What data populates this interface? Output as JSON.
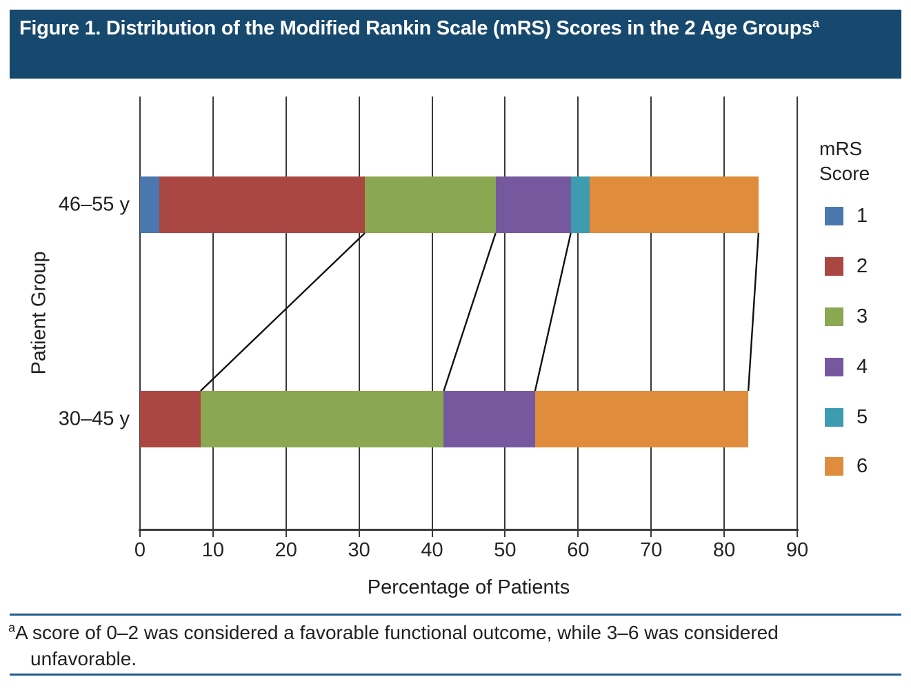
{
  "header": {
    "title": "Figure 1. Distribution of the Modified Rankin Scale (mRS) Scores in the 2 Age Groups",
    "title_superscript": "a"
  },
  "colors": {
    "header_bg": "#17486e",
    "header_text": "#ffffff",
    "footnote_rule": "#1f5c8d",
    "axis": "#3a3a3a",
    "grid": "#383838",
    "connector": "#111111"
  },
  "chart_data": {
    "type": "bar",
    "variant": "horizontal-stacked",
    "title": "Distribution of the Modified Rankin Scale (mRS) Scores in the 2 Age Groups",
    "categories": [
      "46–55 y",
      "30–45 y"
    ],
    "series": [
      {
        "name": "1",
        "color": "#4a77ad",
        "values": [
          2.6,
          0
        ]
      },
      {
        "name": "2",
        "color": "#ab4742",
        "values": [
          28.2,
          8.3
        ]
      },
      {
        "name": "3",
        "color": "#8aa751",
        "values": [
          17.9,
          33.3
        ]
      },
      {
        "name": "4",
        "color": "#76589e",
        "values": [
          10.3,
          12.5
        ]
      },
      {
        "name": "5",
        "color": "#3d9cb0",
        "values": [
          2.6,
          0
        ]
      },
      {
        "name": "6",
        "color": "#e08c3d",
        "values": [
          23.1,
          29.2
        ]
      }
    ],
    "stacked_totals": [
      84.7,
      83.3
    ],
    "xlabel": "Percentage of Patients",
    "ylabel": "Patient Group",
    "xlim": [
      0,
      90
    ],
    "x_ticks": [
      0,
      10,
      20,
      30,
      40,
      50,
      60,
      70,
      80,
      90
    ],
    "grid": true,
    "legend": {
      "position": "right",
      "title_line1": "mRS",
      "title_line2": "Score"
    },
    "connector_lines_after_series": [
      "2",
      "3",
      "4",
      "6"
    ]
  },
  "footnote": {
    "marker": "a",
    "text": "A score of 0–2 was considered a favorable functional outcome, while 3–6 was considered unfavorable."
  }
}
